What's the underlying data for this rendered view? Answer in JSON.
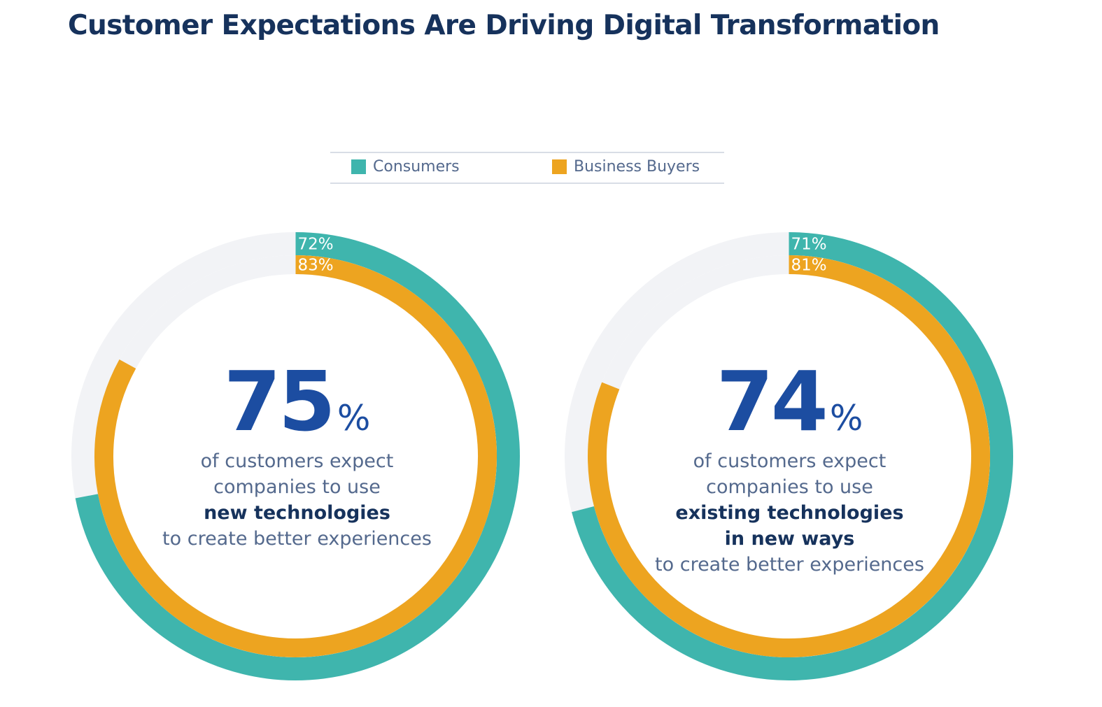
{
  "header": {
    "title": "Customer Expectations Are Driving Digital Transformation"
  },
  "legend": [
    {
      "label": "Consumers",
      "color": "#3fb5ad"
    },
    {
      "label": "Business Buyers",
      "color": "#eda420"
    }
  ],
  "chart_data": [
    {
      "type": "donut",
      "title": "",
      "series": [
        {
          "name": "Consumers",
          "value": 72,
          "label": "72%"
        },
        {
          "name": "Business Buyers",
          "value": 83,
          "label": "83%"
        }
      ],
      "headline": {
        "value": "75",
        "unit": "%"
      },
      "caption": [
        "of customers expect",
        "companies to use",
        "new technologies",
        "to create better experiences"
      ],
      "caption_bold": [
        false,
        false,
        true,
        false
      ]
    },
    {
      "type": "donut",
      "title": "",
      "series": [
        {
          "name": "Consumers",
          "value": 71,
          "label": "71%"
        },
        {
          "name": "Business Buyers",
          "value": 81,
          "label": "81%"
        }
      ],
      "headline": {
        "value": "74",
        "unit": "%"
      },
      "caption": [
        "of customers expect",
        "companies to use",
        "existing technologies",
        "in new ways",
        "to create better experiences"
      ],
      "caption_bold": [
        false,
        false,
        true,
        true,
        false
      ]
    }
  ],
  "colors": {
    "track": "#f2f3f6",
    "consumers": "#3fb5ad",
    "business_buyers": "#eda420"
  }
}
